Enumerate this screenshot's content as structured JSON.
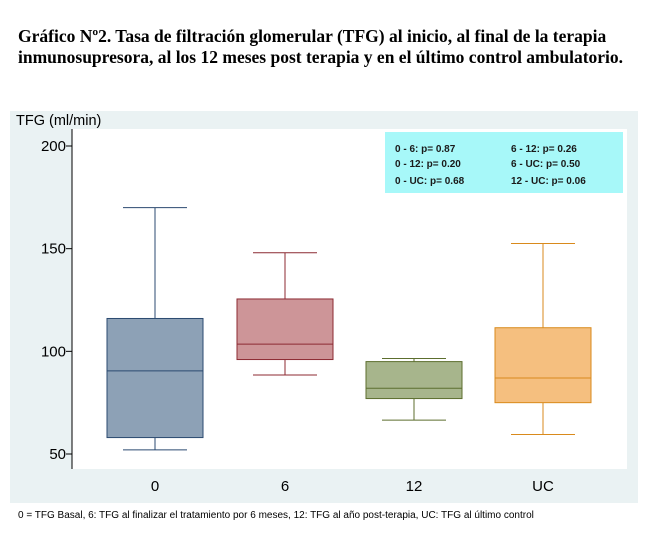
{
  "title_lines": [
    "Gráfico Nº2. Tasa de filtración glomerular (TFG) al inicio, al final de la terapia",
    "inmunosupresora, al los 12 meses post terapia y en el último control ambulatorio."
  ],
  "footnote": "0 = TFG Basal, 6: TFG  al finalizar el tratamiento por 6 meses, 12: TFG al año post-terapia, UC: TFG al último control",
  "stats_box": {
    "rows": [
      [
        "0 - 6: p= 0.87",
        "6 - 12: p= 0.26"
      ],
      [
        "0 - 12: p= 0.20",
        "6 - UC: p= 0.50"
      ],
      [
        "0 - UC: p= 0.68",
        "12 - UC: p= 0.06"
      ]
    ]
  },
  "colors": {
    "plot_background": "#ffffff",
    "frame_background": "#eaf2f3",
    "stats_background": "#a7f8f9"
  },
  "chart_data": {
    "type": "boxplot",
    "ylabel": "TFG (ml/min)",
    "xlabel": "",
    "ylim": [
      47,
      200
    ],
    "yticks": [
      50,
      100,
      150,
      200
    ],
    "grid": false,
    "categories": [
      "0",
      "6",
      "12",
      "UC"
    ],
    "boxes": [
      {
        "category": "0",
        "whisker_low": 52,
        "q1": 58,
        "median": 90.5,
        "q3": 116,
        "whisker_high": 170,
        "fill": "#8da1b6",
        "stroke": "#2b4a70"
      },
      {
        "category": "6",
        "whisker_low": 88.5,
        "q1": 96,
        "median": 103.5,
        "q3": 125.5,
        "whisker_high": 148,
        "fill": "#cd9598",
        "stroke": "#8c2a32"
      },
      {
        "category": "12",
        "whisker_low": 66.5,
        "q1": 77,
        "median": 82,
        "q3": 95,
        "whisker_high": 96.5,
        "fill": "#a7b58c",
        "stroke": "#5c6e2e"
      },
      {
        "category": "UC",
        "whisker_low": 59.5,
        "q1": 75,
        "median": 87,
        "q3": 111.5,
        "whisker_high": 152.5,
        "fill": "#f5bf7f",
        "stroke": "#d98a1c"
      }
    ]
  }
}
